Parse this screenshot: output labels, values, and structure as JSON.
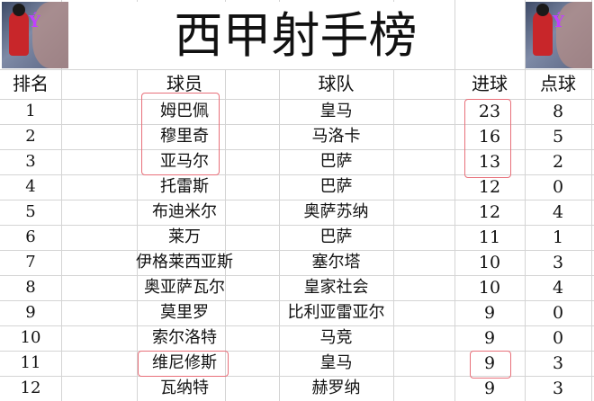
{
  "title": "西甲射手榜",
  "headers": {
    "rank": "排名",
    "player": "球员",
    "team": "球队",
    "goals": "进球",
    "penalties": "点球"
  },
  "rows": [
    {
      "rank": "1",
      "player": "姆巴佩",
      "team": "皇马",
      "goals": "23",
      "penalties": "8"
    },
    {
      "rank": "2",
      "player": "穆里奇",
      "team": "马洛卡",
      "goals": "16",
      "penalties": "5"
    },
    {
      "rank": "3",
      "player": "亚马尔",
      "team": "巴萨",
      "goals": "13",
      "penalties": "2"
    },
    {
      "rank": "4",
      "player": "托雷斯",
      "team": "巴萨",
      "goals": "12",
      "penalties": "0"
    },
    {
      "rank": "5",
      "player": "布迪米尔",
      "team": "奥萨苏纳",
      "goals": "12",
      "penalties": "4"
    },
    {
      "rank": "6",
      "player": "莱万",
      "team": "巴萨",
      "goals": "11",
      "penalties": "1"
    },
    {
      "rank": "7",
      "player": "伊格莱西亚斯",
      "team": "塞尔塔",
      "goals": "10",
      "penalties": "3"
    },
    {
      "rank": "8",
      "player": "奥亚萨瓦尔",
      "team": "皇家社会",
      "goals": "10",
      "penalties": "4"
    },
    {
      "rank": "9",
      "player": "莫里罗",
      "team": "比利亚雷亚尔",
      "goals": "9",
      "penalties": "0"
    },
    {
      "rank": "10",
      "player": "索尔洛特",
      "team": "马竞",
      "goals": "9",
      "penalties": "0"
    },
    {
      "rank": "11",
      "player": "维尼修斯",
      "team": "皇马",
      "goals": "9",
      "penalties": "3"
    },
    {
      "rank": "12",
      "player": "瓦纳特",
      "team": "赫罗纳",
      "goals": "9",
      "penalties": "3"
    }
  ],
  "highlight_color": "#e8707a"
}
